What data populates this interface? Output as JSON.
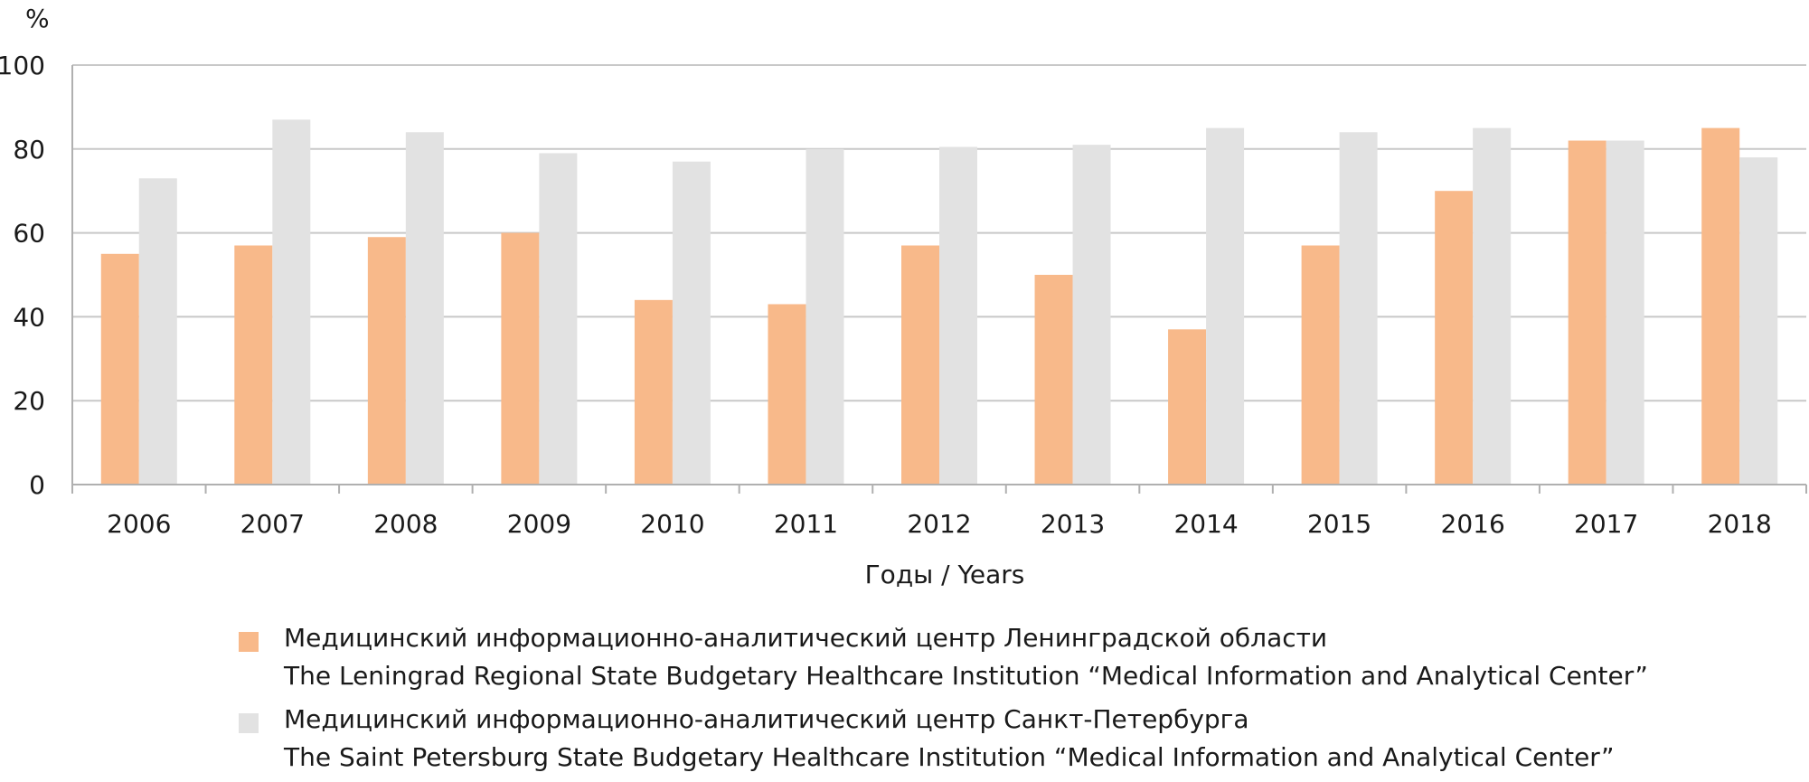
{
  "chart_data": {
    "type": "bar",
    "title": "",
    "ylabel": "%",
    "xlabel": "Годы / Years",
    "ylim": [
      0,
      100
    ],
    "yticks": [
      0,
      20,
      40,
      60,
      80,
      100
    ],
    "grid": true,
    "legend_position": "bottom",
    "categories": [
      "2006",
      "2007",
      "2008",
      "2009",
      "2010",
      "2011",
      "2012",
      "2013",
      "2014",
      "2015",
      "2016",
      "2017",
      "2018"
    ],
    "series": [
      {
        "name": "Медицинский информационно-аналитический центр Ленинградской области",
        "name_en": "The Leningrad Regional State Budgetary Healthcare Institution “Medical Information and Analytical Center”",
        "color": "#f8b98a",
        "values": [
          55,
          57,
          59,
          60,
          44,
          43,
          57,
          50,
          37,
          57,
          70,
          82,
          85
        ]
      },
      {
        "name": "Медицинский информационно-аналитический центр Санкт-Петербурга",
        "name_en": "The Saint Petersburg State Budgetary Healthcare Institution “Medical Information and Analytical Center”",
        "color": "#e2e2e2",
        "values": [
          73,
          87,
          84,
          79,
          77,
          80,
          80.5,
          81,
          85,
          84,
          85,
          82,
          78
        ]
      }
    ]
  }
}
